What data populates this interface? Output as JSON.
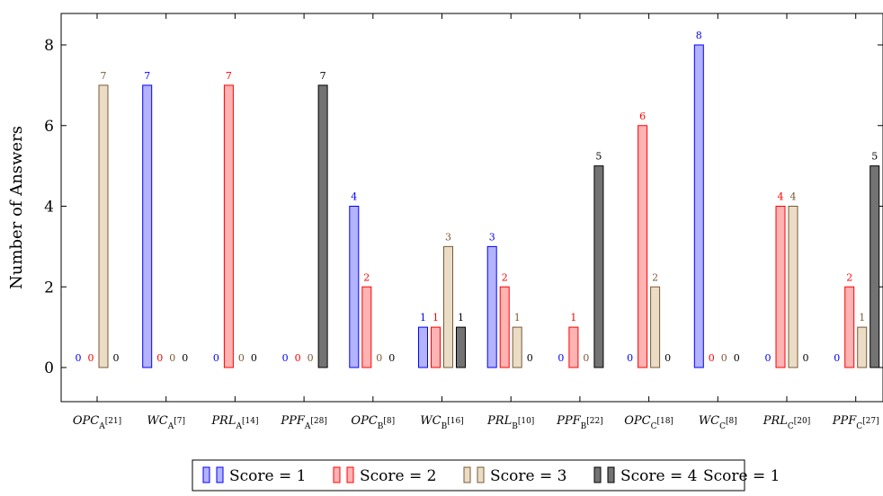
{
  "chart_data": {
    "type": "bar",
    "title": "",
    "xlabel": "",
    "ylabel": "Number of Answers",
    "ylim": [
      0,
      8.4
    ],
    "yticks": [
      0,
      2,
      4,
      6,
      8
    ],
    "grid": false,
    "legend_position": "bottom",
    "categories": [
      {
        "base": "OPC",
        "sub": "A",
        "n": "[21]"
      },
      {
        "base": "WC",
        "sub": "A",
        "n": "[7]"
      },
      {
        "base": "PRL",
        "sub": "A",
        "n": "[14]"
      },
      {
        "base": "PPF",
        "sub": "A",
        "n": "[28]"
      },
      {
        "base": "OPC",
        "sub": "B",
        "n": "[8]"
      },
      {
        "base": "WC",
        "sub": "B",
        "n": "[16]"
      },
      {
        "base": "PRL",
        "sub": "B",
        "n": "[10]"
      },
      {
        "base": "PPF",
        "sub": "B",
        "n": "[22]"
      },
      {
        "base": "OPC",
        "sub": "C",
        "n": "[18]"
      },
      {
        "base": "WC",
        "sub": "C",
        "n": "[8]"
      },
      {
        "base": "PRL",
        "sub": "C",
        "n": "[20]"
      },
      {
        "base": "PPF",
        "sub": "C",
        "n": "[27]"
      }
    ],
    "series": [
      {
        "name": "Score = 1",
        "fill": "#b3b3ff",
        "stroke": "#0000ff",
        "label_color": "#0000ff",
        "values": [
          0,
          7,
          0,
          0,
          4,
          1,
          3,
          0,
          0,
          8,
          0,
          0
        ]
      },
      {
        "name": "Score = 2",
        "fill": "#ffb3b3",
        "stroke": "#ff0000",
        "label_color": "#ff0000",
        "values": [
          0,
          0,
          7,
          0,
          2,
          1,
          2,
          1,
          6,
          0,
          4,
          2
        ]
      },
      {
        "name": "Score = 3",
        "fill": "#ebdcc6",
        "stroke": "#7a5a35",
        "label_color": "#7a5a35",
        "values": [
          7,
          0,
          0,
          0,
          0,
          3,
          1,
          0,
          2,
          0,
          4,
          1
        ]
      },
      {
        "name": "Score = 4",
        "fill": "#737373",
        "stroke": "#000000",
        "label_color": "#000000",
        "values": [
          0,
          0,
          0,
          7,
          0,
          1,
          0,
          5,
          0,
          0,
          0,
          5
        ]
      }
    ],
    "legend_extra": "Score = 1"
  }
}
